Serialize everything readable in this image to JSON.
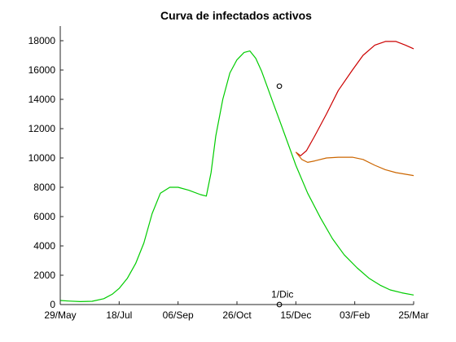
{
  "chart_data": {
    "type": "line",
    "title": "Curva de infectados activos",
    "xlabel": "",
    "ylabel": "",
    "x_ticks": [
      "29/May",
      "18/Jul",
      "06/Sep",
      "26/Oct",
      "15/Dec",
      "03/Feb",
      "25/Mar"
    ],
    "xlim": [
      "2020-05-29",
      "2021-03-25"
    ],
    "ylim": [
      0,
      19000
    ],
    "y_ticks": [
      0,
      2000,
      4000,
      6000,
      8000,
      10000,
      12000,
      14000,
      16000,
      18000
    ],
    "grid": false,
    "legend": "none",
    "series": [
      {
        "color": "#00cc00",
        "points": [
          [
            "2020-05-29",
            280
          ],
          [
            "2020-06-05",
            240
          ],
          [
            "2020-06-15",
            200
          ],
          [
            "2020-06-25",
            220
          ],
          [
            "2020-07-05",
            400
          ],
          [
            "2020-07-12",
            700
          ],
          [
            "2020-07-18",
            1100
          ],
          [
            "2020-07-25",
            1800
          ],
          [
            "2020-08-01",
            2800
          ],
          [
            "2020-08-08",
            4200
          ],
          [
            "2020-08-15",
            6200
          ],
          [
            "2020-08-22",
            7600
          ],
          [
            "2020-08-30",
            8000
          ],
          [
            "2020-09-06",
            8000
          ],
          [
            "2020-09-15",
            7800
          ],
          [
            "2020-09-25",
            7500
          ],
          [
            "2020-09-30",
            7400
          ],
          [
            "2020-10-04",
            9000
          ],
          [
            "2020-10-08",
            11500
          ],
          [
            "2020-10-14",
            14000
          ],
          [
            "2020-10-20",
            15800
          ],
          [
            "2020-10-26",
            16700
          ],
          [
            "2020-11-01",
            17200
          ],
          [
            "2020-11-06",
            17300
          ],
          [
            "2020-11-11",
            16800
          ],
          [
            "2020-11-16",
            15900
          ],
          [
            "2020-11-21",
            14800
          ],
          [
            "2020-11-26",
            13700
          ],
          [
            "2020-12-01",
            12600
          ],
          [
            "2020-12-06",
            11500
          ],
          [
            "2020-12-11",
            10400
          ],
          [
            "2020-12-15",
            9500
          ],
          [
            "2020-12-25",
            7600
          ],
          [
            "2021-01-05",
            5900
          ],
          [
            "2021-01-15",
            4500
          ],
          [
            "2021-01-25",
            3400
          ],
          [
            "2021-02-05",
            2500
          ],
          [
            "2021-02-15",
            1800
          ],
          [
            "2021-02-25",
            1300
          ],
          [
            "2021-03-05",
            1000
          ],
          [
            "2021-03-15",
            800
          ],
          [
            "2021-03-25",
            650
          ]
        ]
      },
      {
        "color": "#cc0000",
        "points": [
          [
            "2020-12-15",
            10400
          ],
          [
            "2020-12-19",
            10150
          ],
          [
            "2020-12-24",
            10500
          ],
          [
            "2020-12-31",
            11500
          ],
          [
            "2021-01-10",
            13000
          ],
          [
            "2021-01-20",
            14600
          ],
          [
            "2021-02-01",
            16000
          ],
          [
            "2021-02-10",
            17000
          ],
          [
            "2021-02-20",
            17700
          ],
          [
            "2021-03-01",
            17950
          ],
          [
            "2021-03-10",
            17950
          ],
          [
            "2021-03-18",
            17700
          ],
          [
            "2021-03-25",
            17450
          ]
        ]
      },
      {
        "color": "#cc6600",
        "points": [
          [
            "2020-12-15",
            10400
          ],
          [
            "2020-12-20",
            9900
          ],
          [
            "2020-12-25",
            9700
          ],
          [
            "2020-12-31",
            9800
          ],
          [
            "2021-01-10",
            10000
          ],
          [
            "2021-01-20",
            10050
          ],
          [
            "2021-02-01",
            10050
          ],
          [
            "2021-02-10",
            9900
          ],
          [
            "2021-02-20",
            9500
          ],
          [
            "2021-03-01",
            9200
          ],
          [
            "2021-03-10",
            9000
          ],
          [
            "2021-03-25",
            8800
          ]
        ]
      }
    ],
    "markers": [
      {
        "date": "2020-12-01",
        "value": 14900,
        "symbol": "o"
      },
      {
        "date": "2020-12-01",
        "value": 0,
        "symbol": "o"
      }
    ],
    "annotations": [
      {
        "date": "2020-12-01",
        "value": 700,
        "text": "1/Dic"
      }
    ]
  }
}
